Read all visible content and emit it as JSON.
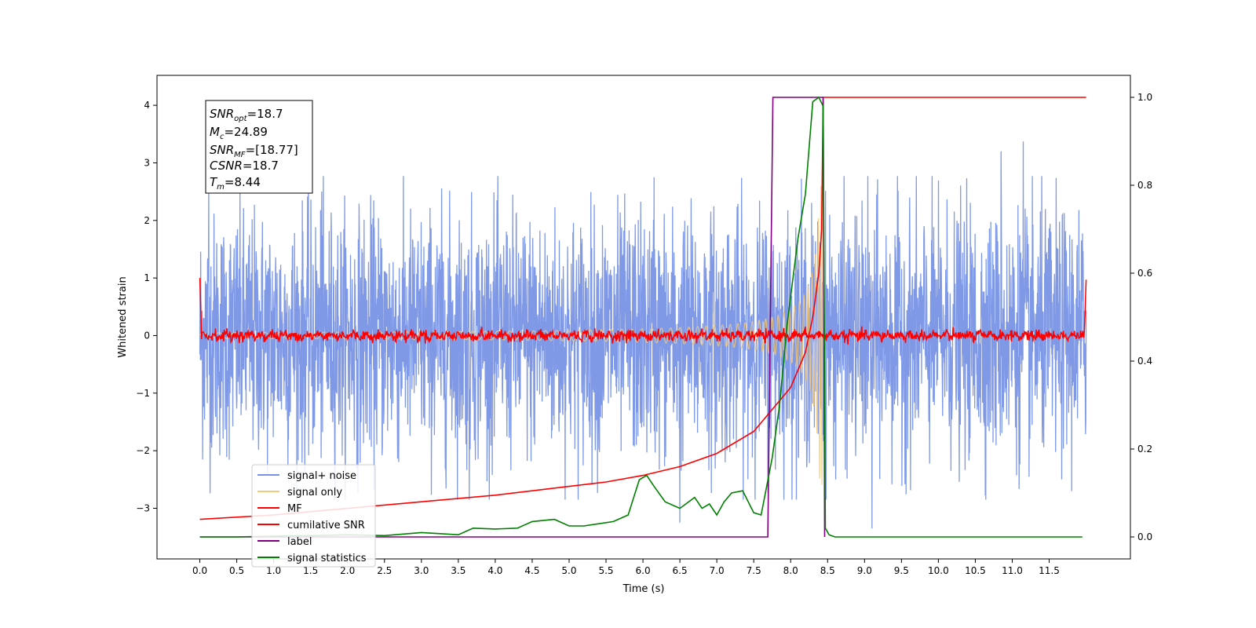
{
  "chart_data": {
    "type": "line",
    "xlabel": "Time (s)",
    "ylabel": "Whitened strain",
    "xlim": [
      -0.58,
      12.6
    ],
    "ylim_left": [
      -3.88,
      4.52
    ],
    "ylim_right": [
      -0.05,
      1.05
    ],
    "x_ticks": [
      0.0,
      0.5,
      1.0,
      1.5,
      2.0,
      2.5,
      3.0,
      3.5,
      4.0,
      4.5,
      5.0,
      5.5,
      6.0,
      6.5,
      7.0,
      7.5,
      8.0,
      8.5,
      9.0,
      9.5,
      10.0,
      10.5,
      11.0,
      11.5
    ],
    "x_tick_labels": [
      "0.0",
      "0.5",
      "1.0",
      "1.5",
      "2.0",
      "2.5",
      "3.0",
      "3.5",
      "4.0",
      "4.5",
      "5.0",
      "5.5",
      "6.0",
      "6.5",
      "7.0",
      "7.5",
      "8.0",
      "8.5",
      "9.0",
      "9.5",
      "10.0",
      "10.5",
      "11.0",
      "11.5"
    ],
    "y_left_ticks": [
      -3,
      -2,
      -1,
      0,
      1,
      2,
      3,
      4
    ],
    "y_left_tick_labels": [
      "−3",
      "−2",
      "−1",
      "0",
      "1",
      "2",
      "3",
      "4"
    ],
    "y_right_ticks": [
      0.0,
      0.2,
      0.4,
      0.6,
      0.8,
      1.0
    ],
    "y_right_tick_labels": [
      "0.0",
      "0.2",
      "0.4",
      "0.6",
      "0.8",
      "1.0"
    ],
    "info_box": {
      "snr_opt": {
        "sym": "SNR",
        "sub": "opt",
        "value": "=18.7"
      },
      "mc": {
        "sym": "M",
        "sub": "c",
        "value": "=24.89"
      },
      "snr_mf": {
        "sym": "SNR",
        "sub": "MF",
        "value": "=[18.77]"
      },
      "csnr": {
        "sym": "CSNR",
        "sub": "",
        "value": "=18.7"
      },
      "tm": {
        "sym": "T",
        "sub": "m",
        "value": "=8.44"
      }
    },
    "legend": {
      "placement": "lower-left",
      "entries": [
        {
          "label": "signal+ noise",
          "color": "#7893e6"
        },
        {
          "label": "signal only",
          "color": "#f5c97a"
        },
        {
          "label": "MF",
          "color": "#ff0000"
        },
        {
          "label": "cumilative SNR",
          "color": "#ff0000"
        },
        {
          "label": "label",
          "color": "#800080"
        },
        {
          "label": "signal statistics",
          "color": "#008000"
        }
      ]
    },
    "series": [
      {
        "name": "signal+ noise",
        "axis": "left",
        "color": "#7893e6",
        "x_range": [
          0.0,
          12.0
        ],
        "mean": 0.0,
        "std": 0.55,
        "peak_range": [
          -3.45,
          3.37
        ],
        "x_peaks": [
          0.12,
          1.65,
          3.65,
          6.15,
          6.5,
          9.1,
          10.85,
          11.15
        ],
        "y_peaks": [
          2.6,
          2.5,
          -2.85,
          2.75,
          -3.25,
          -3.35,
          3.2,
          3.37
        ]
      },
      {
        "name": "signal only",
        "axis": "left",
        "color": "#f5c97a",
        "x_range": [
          0.0,
          8.44
        ],
        "amplitude_start": 0.02,
        "amplitude_peak": 2.6,
        "merger_time": 8.44
      },
      {
        "name": "MF",
        "axis": "left",
        "color": "#ff0000",
        "x_range": [
          0.0,
          12.0
        ],
        "std": 0.045,
        "edge_values": [
          1.0,
          0.97
        ]
      },
      {
        "name": "cumilative SNR",
        "axis": "right",
        "color": "#ff0000",
        "x": [
          0.0,
          1.0,
          2.0,
          3.0,
          4.0,
          5.0,
          5.5,
          6.0,
          6.5,
          7.0,
          7.5,
          7.8,
          8.0,
          8.2,
          8.3,
          8.38,
          8.42,
          8.44,
          9.0,
          12.0
        ],
        "y": [
          0.04,
          0.05,
          0.065,
          0.08,
          0.095,
          0.115,
          0.125,
          0.14,
          0.16,
          0.19,
          0.24,
          0.3,
          0.34,
          0.42,
          0.5,
          0.6,
          0.7,
          1.0,
          1.0,
          1.0
        ]
      },
      {
        "name": "label",
        "axis": "right",
        "color": "#800080",
        "x": [
          0.0,
          7.69,
          7.76,
          8.44,
          8.46
        ],
        "y": [
          0.0,
          0.0,
          1.0,
          1.0,
          0.0
        ]
      },
      {
        "name": "signal statistics",
        "axis": "right",
        "color": "#008000",
        "x": [
          0.0,
          0.5,
          1.0,
          1.5,
          2.0,
          2.5,
          3.0,
          3.5,
          3.7,
          4.0,
          4.3,
          4.5,
          4.8,
          5.0,
          5.2,
          5.4,
          5.6,
          5.8,
          5.95,
          6.05,
          6.15,
          6.3,
          6.5,
          6.7,
          6.8,
          6.9,
          7.0,
          7.1,
          7.2,
          7.35,
          7.5,
          7.6,
          7.75,
          7.85,
          7.95,
          8.1,
          8.2,
          8.3,
          8.38,
          8.44,
          8.47,
          8.52,
          8.6,
          9.0,
          11.0,
          11.95
        ],
        "y": [
          0.0,
          0.0,
          0.002,
          0.003,
          0.005,
          0.003,
          0.01,
          0.005,
          0.02,
          0.018,
          0.02,
          0.035,
          0.04,
          0.025,
          0.025,
          0.03,
          0.035,
          0.05,
          0.13,
          0.14,
          0.115,
          0.08,
          0.065,
          0.09,
          0.065,
          0.075,
          0.05,
          0.08,
          0.1,
          0.105,
          0.055,
          0.05,
          0.18,
          0.3,
          0.48,
          0.68,
          0.78,
          0.99,
          1.0,
          0.98,
          0.02,
          0.005,
          0.0,
          0.0,
          0.0,
          0.0
        ]
      }
    ]
  }
}
